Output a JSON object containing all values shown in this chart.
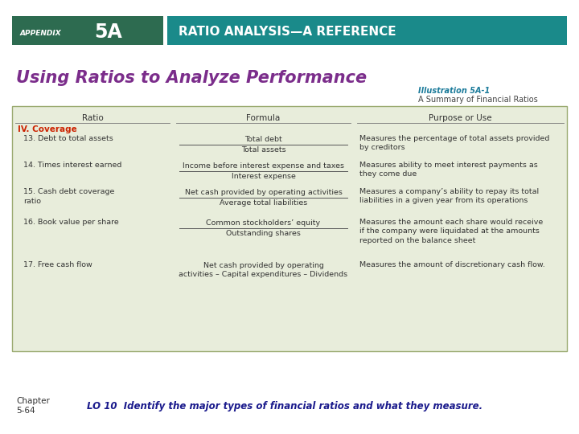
{
  "bg_color": "#ffffff",
  "appendix_bg": "#2d6b50",
  "header_teal_color": "#1a8a8a",
  "appendix_text": "APPENDIX",
  "appendix_num": "5A",
  "header_title": "RATIO ANALYSIS—A REFERENCE",
  "main_title": "Using Ratios to Analyze Performance",
  "main_title_color": "#7b2d8b",
  "illus_title": "Illustration 5A-1",
  "illus_title_color": "#1a7a9a",
  "illus_subtitle": "A Summary of Financial Ratios",
  "table_bg": "#e8eddb",
  "table_border": "#9aaa70",
  "col_headers": [
    "Ratio",
    "Formula",
    "Purpose or Use"
  ],
  "section_header": "IV. Coverage",
  "section_header_color": "#cc2200",
  "rows": [
    {
      "ratio": "13. Debt to total assets",
      "formula_num": "Total debt",
      "formula_den": "Total assets",
      "purpose": "Measures the percentage of total assets provided\nby creditors"
    },
    {
      "ratio": "14. Times interest earned",
      "formula_num": "Income before interest expense and taxes",
      "formula_den": "Interest expense",
      "purpose": "Measures ability to meet interest payments as\nthey come due"
    },
    {
      "ratio": "15. Cash debt coverage\nratio",
      "formula_num": "Net cash provided by operating activities",
      "formula_den": "Average total liabilities",
      "purpose": "Measures a company’s ability to repay its total\nliabilities in a given year from its operations"
    },
    {
      "ratio": "16. Book value per share",
      "formula_num": "Common stockholders’ equity",
      "formula_den": "Outstanding shares",
      "purpose": "Measures the amount each share would receive\nif the company were liquidated at the amounts\nreported on the balance sheet"
    },
    {
      "ratio": "17. Free cash flow",
      "formula_num": "Net cash provided by operating\nactivities – Capital expenditures – Dividends",
      "formula_den": null,
      "purpose": "Measures the amount of discretionary cash flow."
    }
  ],
  "footer_chapter_line1": "Chapter",
  "footer_chapter_line2": "5-64",
  "footer_text": "LO 10  Identify the major types of financial ratios and what they measure.",
  "footer_color": "#1a1a8c"
}
